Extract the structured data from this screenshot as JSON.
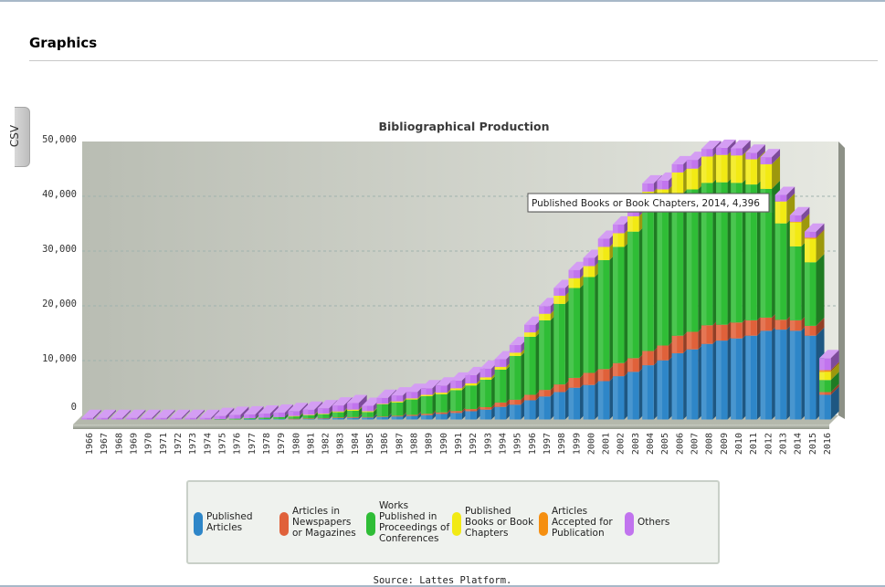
{
  "page": {
    "heading": "Graphics",
    "source_text": "Source: Lattes Platform."
  },
  "export": {
    "csv_label": "CSV"
  },
  "tooltip": {
    "text": "Published Books or Book Chapters, 2014, 4,396"
  },
  "colors": {
    "articles": "#2e86c8",
    "newspapers": "#e0613a",
    "proceedings": "#2fbd36",
    "books": "#f2ea14",
    "accepted": "#f58f10",
    "others": "#c174ee"
  },
  "legend": [
    {
      "label": "Published Articles",
      "color_key": "articles"
    },
    {
      "label": "Articles in Newspapers or Magazines",
      "color_key": "newspapers"
    },
    {
      "label": "Works Published in Proceedings of Conferences",
      "color_key": "proceedings"
    },
    {
      "label": "Published Books or Book Chapters",
      "color_key": "books"
    },
    {
      "label": "Articles Accepted for Publication",
      "color_key": "accepted"
    },
    {
      "label": "Others",
      "color_key": "others"
    }
  ],
  "chart_data": {
    "type": "bar",
    "stacked": true,
    "title": "Bibliographical Production",
    "xlabel": "",
    "ylabel": "",
    "ylim": [
      0,
      50000
    ],
    "yticks": [
      0,
      10000,
      20000,
      30000,
      40000,
      50000
    ],
    "ytick_labels": [
      "0",
      "10,000",
      "20,000",
      "30,000",
      "40,000",
      "50,000"
    ],
    "grid": true,
    "legend_position": "bottom",
    "categories": [
      "1966",
      "1967",
      "1968",
      "1969",
      "1970",
      "1971",
      "1972",
      "1973",
      "1974",
      "1975",
      "1976",
      "1977",
      "1978",
      "1979",
      "1980",
      "1981",
      "1982",
      "1983",
      "1984",
      "1985",
      "1986",
      "1987",
      "1988",
      "1989",
      "1990",
      "1991",
      "1992",
      "1993",
      "1994",
      "1995",
      "1996",
      "1997",
      "1998",
      "1999",
      "2000",
      "2001",
      "2002",
      "2003",
      "2004",
      "2005",
      "2006",
      "2007",
      "2008",
      "2009",
      "2010",
      "2011",
      "2012",
      "2013",
      "2014",
      "2015",
      "2016"
    ],
    "series": [
      {
        "name": "Published Articles",
        "values": [
          0,
          0,
          0,
          0,
          0,
          0,
          0,
          0,
          0,
          0,
          0,
          50,
          80,
          100,
          120,
          150,
          180,
          250,
          300,
          350,
          450,
          550,
          650,
          800,
          1000,
          1200,
          1500,
          1800,
          2300,
          2700,
          3500,
          4200,
          5000,
          5800,
          6300,
          7000,
          7900,
          8700,
          9900,
          10800,
          12100,
          12800,
          13800,
          14400,
          14800,
          15300,
          16200,
          16400,
          16200,
          15300,
          4500
        ]
      },
      {
        "name": "Articles in Newspapers or Magazines",
        "values": [
          0,
          0,
          0,
          0,
          0,
          0,
          0,
          0,
          0,
          0,
          0,
          0,
          0,
          0,
          20,
          50,
          80,
          120,
          150,
          100,
          100,
          150,
          200,
          250,
          300,
          350,
          400,
          450,
          800,
          900,
          1000,
          1200,
          1400,
          1800,
          2200,
          2200,
          2400,
          2500,
          2600,
          2700,
          3200,
          3200,
          3400,
          2900,
          2900,
          2800,
          2400,
          1800,
          1900,
          1800,
          500
        ]
      },
      {
        "name": "Works Published in Proceedings of Conferences",
        "values": [
          0,
          0,
          0,
          0,
          0,
          0,
          0,
          0,
          0,
          50,
          150,
          180,
          250,
          350,
          450,
          550,
          700,
          950,
          1150,
          900,
          2200,
          2400,
          2800,
          3200,
          3300,
          3800,
          4300,
          5000,
          6000,
          8000,
          10600,
          12700,
          14700,
          16400,
          17500,
          19900,
          21200,
          23100,
          25600,
          25000,
          26000,
          26000,
          26000,
          26000,
          25500,
          24800,
          23500,
          17600,
          13500,
          11600,
          2200
        ]
      },
      {
        "name": "Published Books or Book Chapters",
        "values": [
          0,
          0,
          0,
          0,
          0,
          0,
          0,
          0,
          0,
          0,
          0,
          0,
          0,
          0,
          50,
          100,
          100,
          150,
          200,
          150,
          100,
          200,
          200,
          250,
          300,
          350,
          400,
          450,
          500,
          600,
          800,
          1200,
          1500,
          1800,
          2000,
          2400,
          2500,
          2800,
          3500,
          3500,
          3800,
          3800,
          4800,
          5000,
          5000,
          4600,
          4500,
          4000,
          4396,
          4300,
          1500
        ]
      },
      {
        "name": "Articles Accepted for Publication",
        "values": [
          0,
          0,
          0,
          0,
          0,
          0,
          0,
          0,
          0,
          0,
          0,
          0,
          0,
          0,
          0,
          0,
          0,
          0,
          0,
          0,
          0,
          0,
          0,
          0,
          0,
          0,
          0,
          0,
          0,
          0,
          0,
          0,
          0,
          0,
          0,
          0,
          0,
          0,
          0,
          0,
          0,
          0,
          0,
          0,
          0,
          0,
          0,
          0,
          100,
          200,
          300
        ]
      },
      {
        "name": "Others",
        "values": [
          300,
          300,
          300,
          300,
          300,
          300,
          300,
          300,
          300,
          600,
          700,
          700,
          750,
          800,
          900,
          950,
          1000,
          1100,
          1200,
          1000,
          1100,
          1100,
          1200,
          1200,
          1300,
          1400,
          1500,
          1600,
          1400,
          1400,
          1400,
          1400,
          1400,
          1500,
          1500,
          1500,
          1600,
          1600,
          1500,
          1600,
          1500,
          1600,
          1400,
          1300,
          1300,
          1200,
          1300,
          1200,
          1200,
          1100,
          2200
        ]
      }
    ]
  }
}
